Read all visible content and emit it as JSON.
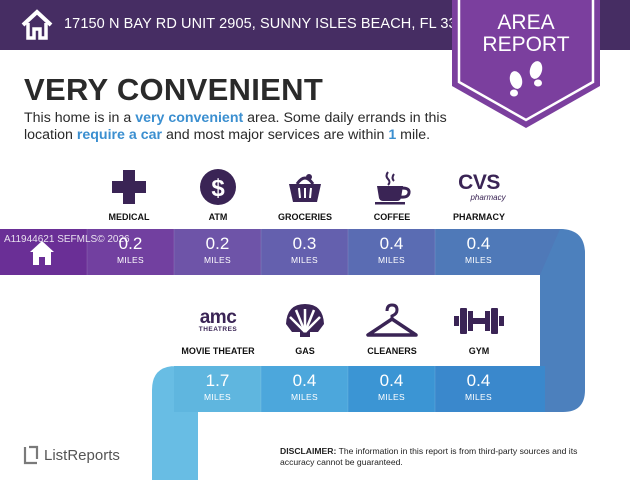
{
  "header": {
    "address": "17150 N BAY RD UNIT 2905, SUNNY ISLES BEACH, FL 33160",
    "badge_line1": "AREA",
    "badge_line2": "REPORT"
  },
  "summary": {
    "headline": "VERY CONVENIENT",
    "desc_part1": "This home is in a ",
    "desc_hl1": "very convenient",
    "desc_part2": " area. Some daily errands in this location ",
    "desc_hl2": "require a car",
    "desc_part3": " and most major services are within ",
    "desc_hl3": "1",
    "desc_part4": " mile."
  },
  "row1": [
    {
      "label": "MEDICAL",
      "value": "0.2",
      "unit": "MILES",
      "icon": "medical-cross-icon"
    },
    {
      "label": "ATM",
      "value": "0.2",
      "unit": "MILES",
      "icon": "dollar-icon"
    },
    {
      "label": "GROCERIES",
      "value": "0.3",
      "unit": "MILES",
      "icon": "grocery-basket-icon"
    },
    {
      "label": "COFFEE",
      "value": "0.4",
      "unit": "MILES",
      "icon": "coffee-cup-icon"
    },
    {
      "label": "PHARMACY",
      "value": "0.4",
      "unit": "MILES",
      "icon": "cvs-pharmacy-logo"
    }
  ],
  "row2": [
    {
      "label": "MOVIE THEATER",
      "value": "1.7",
      "unit": "MILES",
      "icon": "amc-theatres-logo"
    },
    {
      "label": "GAS",
      "value": "0.4",
      "unit": "MILES",
      "icon": "shell-icon"
    },
    {
      "label": "CLEANERS",
      "value": "0.4",
      "unit": "MILES",
      "icon": "hanger-icon"
    },
    {
      "label": "GYM",
      "value": "0.4",
      "unit": "MILES",
      "icon": "dumbbell-icon"
    }
  ],
  "logos": {
    "cvs_line1": "CVS",
    "cvs_line2": "pharmacy",
    "amc_line1": "amc",
    "amc_line2": "THEATRES"
  },
  "watermark": "A11944621 SEFMLS© 2026",
  "footer": {
    "brand": "ListReports",
    "disclaimer_label": "DISCLAIMER:",
    "disclaimer_text": " The information in this report is from third-party sources and its accuracy cannot be guaranteed."
  },
  "colors": {
    "header_bg": "#462d63",
    "badge_bg": "#7b3f9e",
    "highlight": "#3b8fd0"
  }
}
